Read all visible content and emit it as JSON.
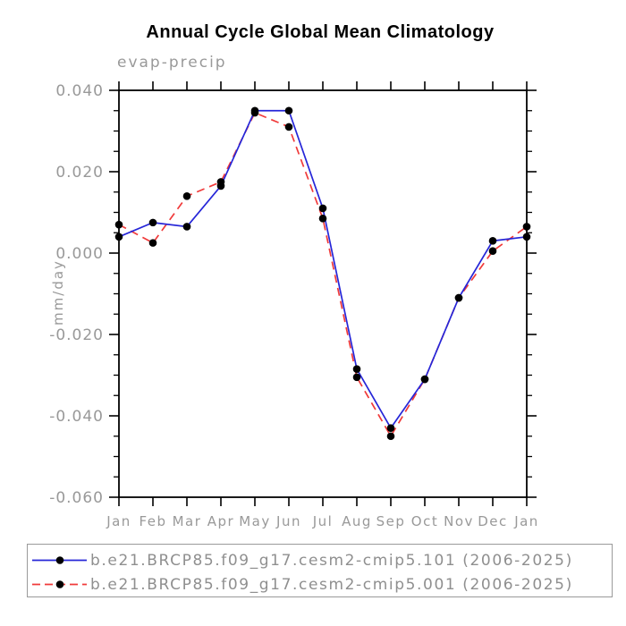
{
  "chart_data": {
    "type": "line",
    "title": "Annual Cycle Global Mean Climatology",
    "subtitle": "evap-precip",
    "ylabel": "mm/day",
    "xlabel": "",
    "ylim": [
      -0.06,
      0.04
    ],
    "y_major_ticks": [
      0.04,
      0.02,
      0.0,
      -0.02,
      -0.04,
      -0.06
    ],
    "y_tick_labels": [
      "0.040",
      "0.020",
      "0.000",
      "-0.020",
      "-0.040",
      "-0.060"
    ],
    "y_minor_step": 0.005,
    "x_categories": [
      "Jan",
      "Feb",
      "Mar",
      "Apr",
      "May",
      "Jun",
      "Jul",
      "Aug",
      "Sep",
      "Oct",
      "Nov",
      "Dec",
      "Jan"
    ],
    "grid": false,
    "legend_position": "bottom",
    "axis_color": "#000000",
    "text_color": "#999999",
    "series": [
      {
        "name": "b.e21.BRCP85.f09_g17.cesm2-cmip5.101 (2006-2025)",
        "color": "#2626d8",
        "line_style": "solid",
        "marker": "circle",
        "marker_color": "#000000",
        "values": [
          0.004,
          0.0075,
          0.0065,
          0.0165,
          0.035,
          0.035,
          0.011,
          -0.0285,
          -0.043,
          -0.031,
          -0.011,
          0.003,
          0.004
        ]
      },
      {
        "name": "b.e21.BRCP85.f09_g17.cesm2-cmip5.001 (2006-2025)",
        "color": "#f03a3a",
        "line_style": "dashed",
        "marker": "circle",
        "marker_color": "#000000",
        "values": [
          0.007,
          0.0025,
          0.014,
          0.0175,
          0.0345,
          0.031,
          0.0085,
          -0.0305,
          -0.045,
          -0.031,
          -0.011,
          0.0005,
          0.0065
        ]
      }
    ]
  }
}
